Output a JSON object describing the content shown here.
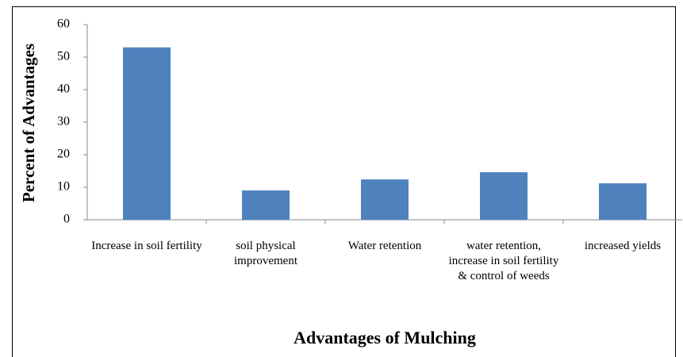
{
  "chart_data": {
    "type": "bar",
    "x_label": "Advantages of Mulching",
    "y_label": "Percent of Advantages",
    "categories": [
      "Increase in soil fertility",
      "soil physical improvement",
      "Water retention",
      "water retention, increase in soil fertility & control of weeds",
      "increased yields"
    ],
    "values": [
      53,
      9,
      12.4,
      14.6,
      11.2
    ],
    "color": "#4f81bd",
    "ylim": [
      0,
      60
    ],
    "yticks": [
      0,
      10,
      20,
      30,
      40,
      50,
      60
    ],
    "grid": false
  }
}
